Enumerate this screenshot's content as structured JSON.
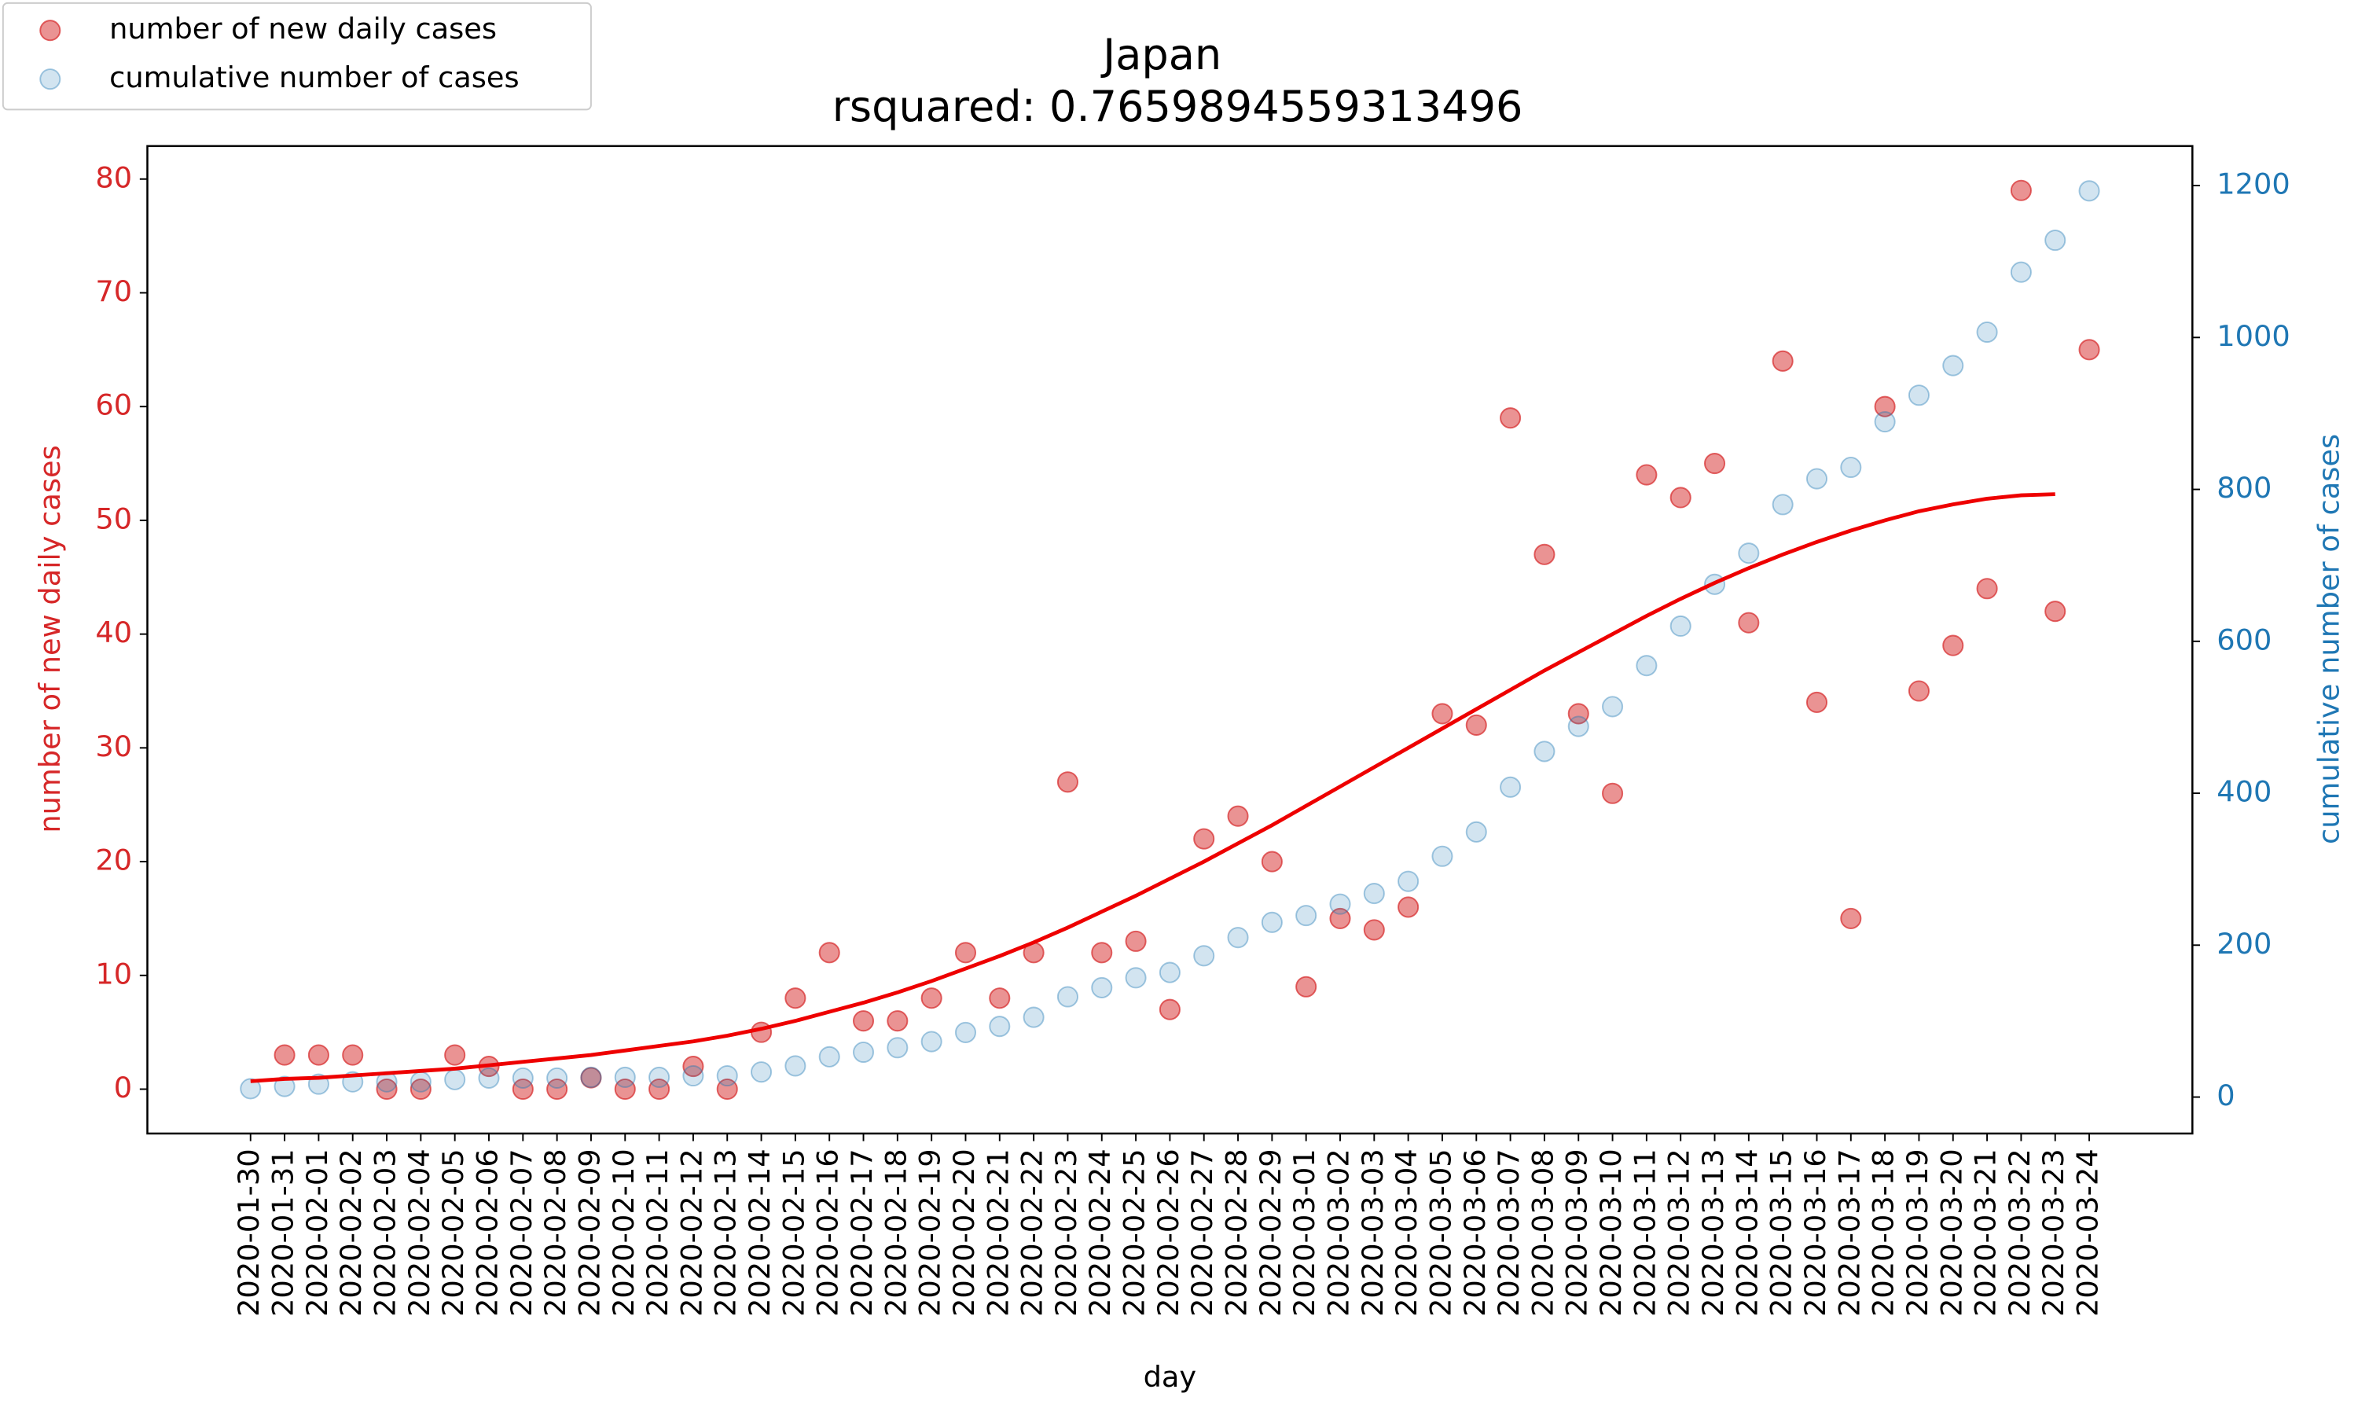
{
  "chart_data": {
    "type": "scatter",
    "title": "Japan",
    "subtitle": "rsquared: 0.7659894559313496",
    "x_label": "day",
    "y_label": "number of new daily cases",
    "y2_label": "cumulative number of cases",
    "categories": [
      "2020-01-30",
      "2020-01-31",
      "2020-02-01",
      "2020-02-02",
      "2020-02-03",
      "2020-02-04",
      "2020-02-05",
      "2020-02-06",
      "2020-02-07",
      "2020-02-08",
      "2020-02-09",
      "2020-02-10",
      "2020-02-11",
      "2020-02-12",
      "2020-02-13",
      "2020-02-14",
      "2020-02-15",
      "2020-02-16",
      "2020-02-17",
      "2020-02-18",
      "2020-02-19",
      "2020-02-20",
      "2020-02-21",
      "2020-02-22",
      "2020-02-23",
      "2020-02-24",
      "2020-02-25",
      "2020-02-26",
      "2020-02-27",
      "2020-02-28",
      "2020-02-29",
      "2020-03-01",
      "2020-03-02",
      "2020-03-03",
      "2020-03-04",
      "2020-03-05",
      "2020-03-06",
      "2020-03-07",
      "2020-03-08",
      "2020-03-09",
      "2020-03-10",
      "2020-03-11",
      "2020-03-12",
      "2020-03-13",
      "2020-03-14",
      "2020-03-15",
      "2020-03-16",
      "2020-03-17",
      "2020-03-18",
      "2020-03-19",
      "2020-03-20",
      "2020-03-21",
      "2020-03-22",
      "2020-03-23",
      "2020-03-24"
    ],
    "series": [
      {
        "name": "number of new daily cases",
        "color": "#d62728",
        "axis": "y",
        "values": [
          null,
          3,
          3,
          3,
          0,
          0,
          3,
          2,
          0,
          0,
          1,
          0,
          0,
          2,
          0,
          5,
          8,
          12,
          6,
          6,
          8,
          12,
          8,
          12,
          27,
          12,
          13,
          7,
          22,
          24,
          20,
          9,
          15,
          14,
          16,
          33,
          32,
          59,
          47,
          33,
          26,
          54,
          52,
          55,
          41,
          64,
          34,
          15,
          60,
          35,
          39,
          44,
          79,
          42,
          65
        ]
      },
      {
        "name": "cumulative number of cases",
        "color": "#1f77b4",
        "axis": "y2",
        "values": [
          11,
          14,
          17,
          20,
          20,
          20,
          23,
          25,
          25,
          25,
          26,
          26,
          26,
          28,
          28,
          33,
          41,
          53,
          59,
          65,
          73,
          85,
          93,
          105,
          132,
          144,
          157,
          164,
          186,
          210,
          230,
          239,
          254,
          268,
          284,
          317,
          349,
          408,
          455,
          488,
          514,
          568,
          620,
          675,
          716,
          780,
          814,
          829,
          889,
          924,
          963,
          1007,
          1086,
          1128,
          1193
        ]
      }
    ],
    "fit": {
      "color": "#ee0000",
      "axis": "y",
      "values": [
        0.7,
        0.9,
        1.0,
        1.2,
        1.4,
        1.6,
        1.8,
        2.1,
        2.4,
        2.7,
        3.0,
        3.4,
        3.8,
        4.2,
        4.7,
        5.3,
        6.0,
        6.8,
        7.6,
        8.5,
        9.5,
        10.6,
        11.7,
        12.9,
        14.2,
        15.6,
        17.0,
        18.5,
        20.0,
        21.6,
        23.2,
        24.9,
        26.6,
        28.3,
        30.0,
        31.7,
        33.4,
        35.1,
        36.8,
        38.4,
        40.0,
        41.6,
        43.1,
        44.5,
        45.8,
        47.0,
        48.1,
        49.1,
        50.0,
        50.8,
        51.4,
        51.9,
        52.2,
        52.3,
        null
      ]
    },
    "ylim": [
      -3.9,
      82.9
    ],
    "yticks": [
      0,
      10,
      20,
      30,
      40,
      50,
      60,
      70,
      80
    ],
    "y2lim": [
      -48,
      1252
    ],
    "y2ticks": [
      0,
      200,
      400,
      600,
      800,
      1000,
      1200
    ],
    "legend": "upper left",
    "grid": false
  }
}
